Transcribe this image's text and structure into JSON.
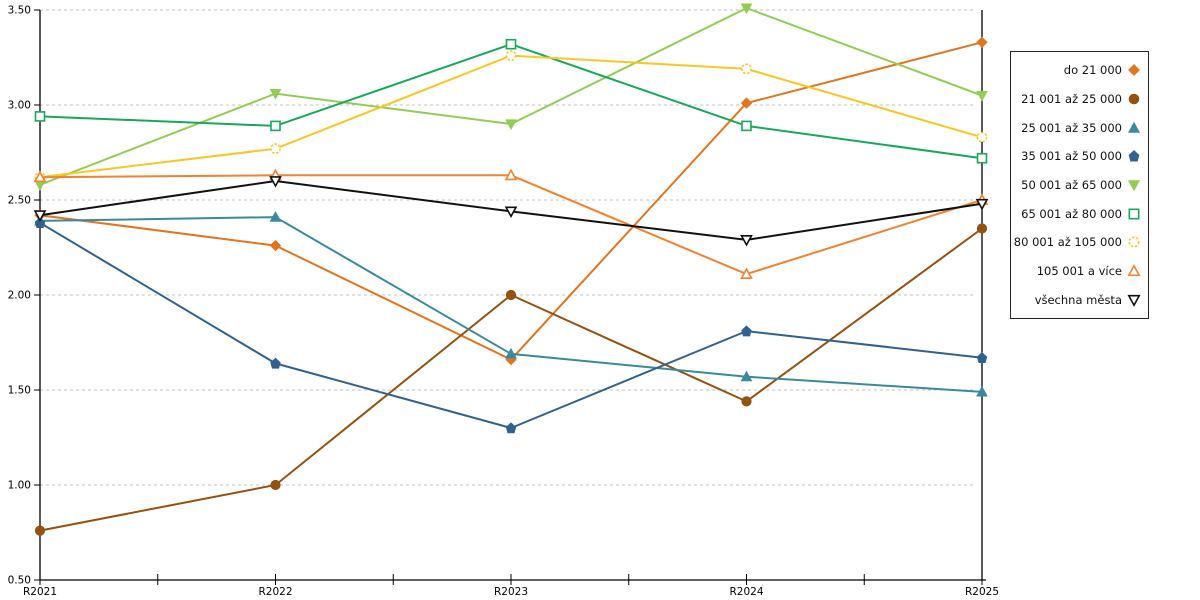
{
  "chart_data": {
    "type": "line",
    "title": "",
    "xlabel": "",
    "ylabel": "",
    "x_categories": [
      "R2021",
      "R2022",
      "R2023",
      "R2024",
      "R2025"
    ],
    "ylim": [
      0.5,
      3.5
    ],
    "ytick_step": 0.5,
    "ytick_labels": [
      "3.50",
      "3.00",
      "2.50",
      "2.00",
      "1.50",
      "1.00",
      "0.50"
    ],
    "grid": "horizontal-dashed",
    "gridline_color": "#C3C3C3",
    "axis_color": "#000000",
    "legend_position": "right",
    "series": [
      {
        "name": "do 21 000",
        "color": "#E2751D",
        "marker": "diamond",
        "open": false,
        "values": [
          2.42,
          2.26,
          1.66,
          3.01,
          3.33
        ]
      },
      {
        "name": "21 001 až 25 000",
        "color": "#94510F",
        "marker": "circle",
        "open": false,
        "values": [
          0.76,
          1.0,
          2.0,
          1.44,
          2.35
        ]
      },
      {
        "name": "25 001 až 35 000",
        "color": "#3A8A9E",
        "marker": "triangle-up",
        "open": false,
        "values": [
          2.39,
          2.41,
          1.69,
          1.57,
          1.49
        ]
      },
      {
        "name": "35 001 až 50 000",
        "color": "#31618F",
        "marker": "pentagon",
        "open": false,
        "values": [
          2.38,
          1.64,
          1.3,
          1.81,
          1.67
        ]
      },
      {
        "name": "50 001 až 65 000",
        "color": "#93CC55",
        "marker": "triangle-down",
        "open": false,
        "values": [
          2.58,
          3.06,
          2.9,
          3.51,
          3.05
        ]
      },
      {
        "name": "65 001 až 80 000",
        "color": "#17A85B",
        "marker": "square",
        "open": true,
        "values": [
          2.94,
          2.89,
          3.32,
          2.89,
          2.72
        ]
      },
      {
        "name": "80 001 až 105 000",
        "color": "#F9C623",
        "marker": "circle-dashed",
        "open": true,
        "values": [
          2.62,
          2.77,
          3.26,
          3.19,
          2.83
        ]
      },
      {
        "name": "105 001 a více",
        "color": "#F28130",
        "marker": "triangle-up",
        "open": true,
        "values": [
          2.62,
          2.63,
          2.63,
          2.11,
          2.5
        ]
      },
      {
        "name": "všechna města",
        "color": "#111111",
        "marker": "triangle-down",
        "open": true,
        "values": [
          2.42,
          2.6,
          2.44,
          2.29,
          2.48
        ]
      }
    ]
  }
}
